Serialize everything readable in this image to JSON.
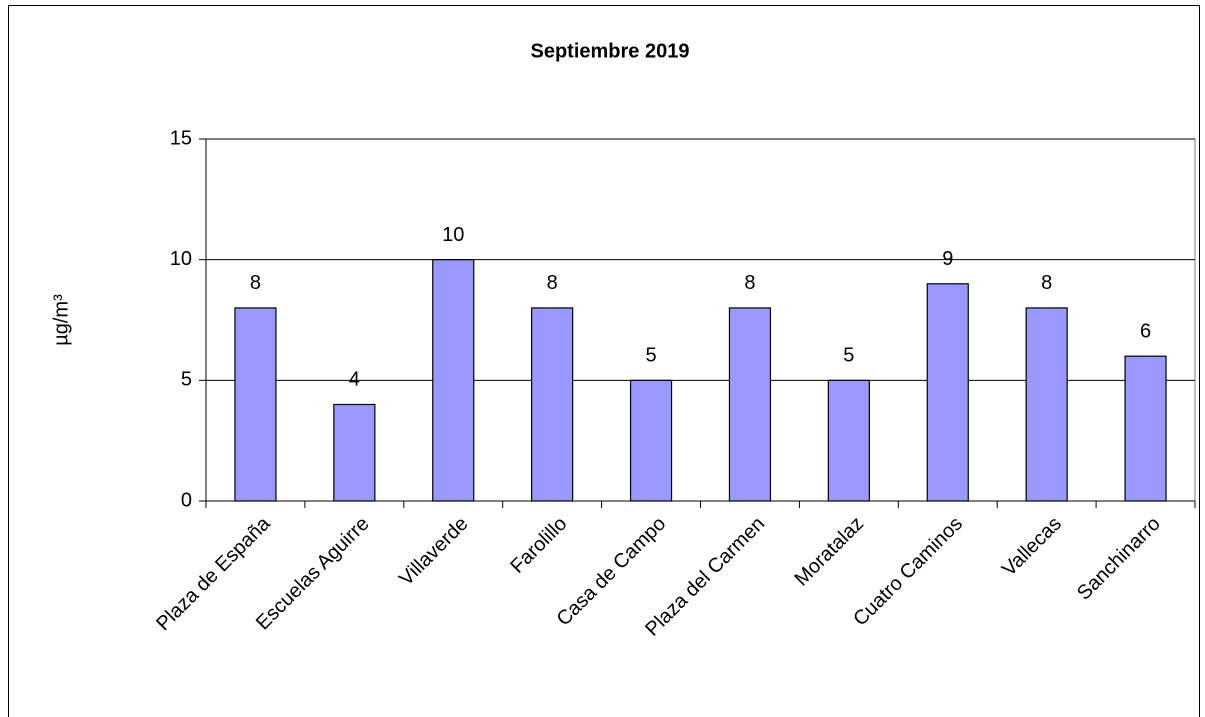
{
  "chart_data": {
    "type": "bar",
    "title": "Septiembre 2019",
    "y_label": "µg/m³",
    "categories": [
      "Plaza de España",
      "Escuelas Aguirre",
      "Villaverde",
      "Farolillo",
      "Casa de Campo",
      "Plaza del Carmen",
      "Moratalaz",
      "Cuatro Caminos",
      "Vallecas",
      "Sanchinarro"
    ],
    "values": [
      8,
      4,
      10,
      8,
      5,
      8,
      5,
      9,
      8,
      6
    ],
    "color": "#9999ff",
    "ylim": [
      0,
      15
    ],
    "yticks": [
      0,
      5,
      10,
      15
    ],
    "grid": true
  }
}
